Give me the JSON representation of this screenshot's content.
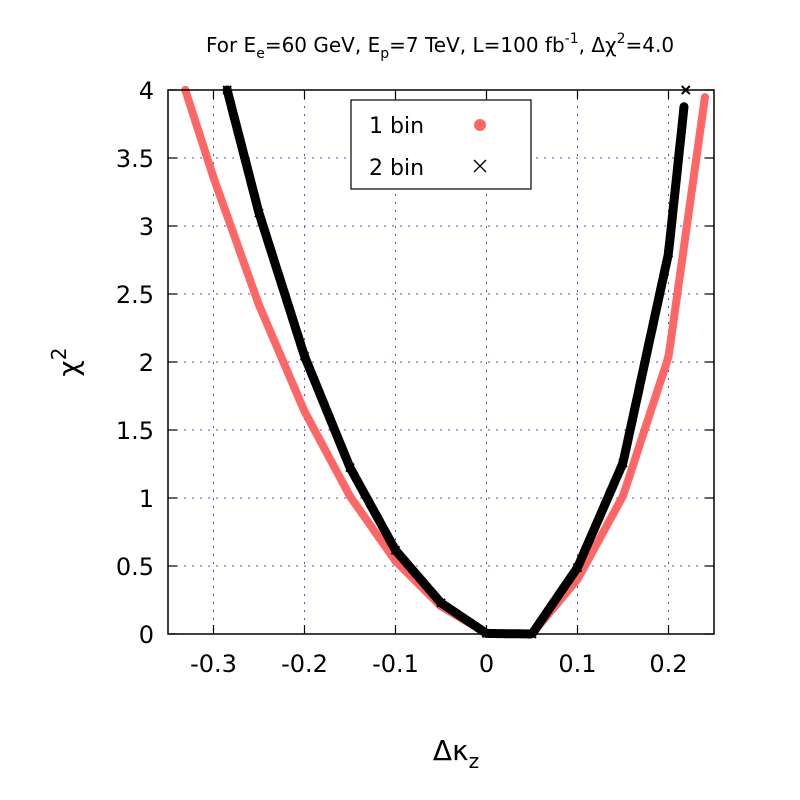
{
  "chart_data": {
    "type": "scatter",
    "title": {
      "parts": [
        {
          "t": "For E"
        },
        {
          "t": "e",
          "sub": true
        },
        {
          "t": "=60 GeV, E"
        },
        {
          "t": "p",
          "sub": true
        },
        {
          "t": "=7 TeV, L=100 fb"
        },
        {
          "t": "-1",
          "sup": true
        },
        {
          "t": ", Δχ"
        },
        {
          "t": "2",
          "sup": true
        },
        {
          "t": "=4.0"
        }
      ]
    },
    "xlabel": {
      "main": "Δκ",
      "sub": "z"
    },
    "ylabel": {
      "main": "χ",
      "sup": "2"
    },
    "xlim": [
      -0.35,
      0.25
    ],
    "ylim": [
      0,
      4
    ],
    "x_ticks": [
      -0.3,
      -0.2,
      -0.1,
      0,
      0.1,
      0.2
    ],
    "x_tick_labels": [
      "-0.3",
      "-0.2",
      "-0.1",
      "0",
      "0.1",
      "0.2"
    ],
    "y_ticks": [
      0,
      0.5,
      1,
      1.5,
      2,
      2.5,
      3,
      3.5,
      4
    ],
    "y_tick_labels": [
      "0",
      "0.5",
      "1",
      "1.5",
      "2",
      "2.5",
      "3",
      "3.5",
      "4"
    ],
    "grid": true,
    "legend": {
      "position": "top-center"
    },
    "series": [
      {
        "name": "1 bin",
        "marker": "circle",
        "color": "#ff6666",
        "x": [
          -0.331,
          -0.3,
          -0.25,
          -0.2,
          -0.15,
          -0.1,
          -0.05,
          0.0,
          0.05,
          0.1,
          0.15,
          0.2,
          0.24
        ],
        "y": [
          4.0,
          3.355,
          2.419,
          1.637,
          1.012,
          0.5369,
          0.2035,
          0.0056,
          -0.0,
          0.4025,
          1.016,
          2.036,
          3.947
        ]
      },
      {
        "name": "2 bin",
        "marker": "cross",
        "color": "#000000",
        "x": [
          -0.285,
          -0.25,
          -0.2,
          -0.15,
          -0.1,
          -0.05,
          0.0,
          0.05,
          0.1,
          0.15,
          0.2,
          0.219
        ],
        "y": [
          4.0,
          3.095,
          2.043,
          1.224,
          0.6159,
          0.2283,
          0.0043,
          -0.0,
          0.4887,
          1.258,
          2.799,
          4.0
        ]
      }
    ]
  }
}
